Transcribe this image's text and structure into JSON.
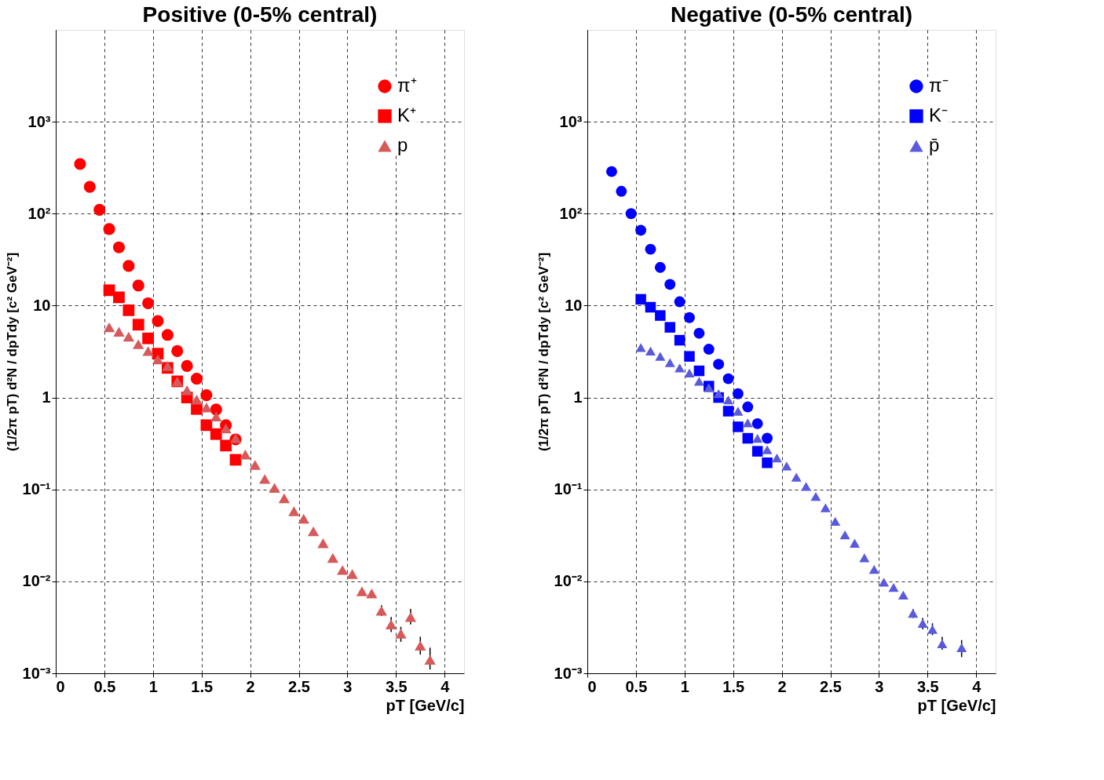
{
  "chart_data": [
    {
      "type": "scatter",
      "title": "Positive (0-5% central)",
      "xlabel": "pT [GeV/c]",
      "ylabel": "(1/2π pT) d²N / dpTdy [c² GeV⁻²]",
      "log": "y",
      "grid": true,
      "legend": "top right",
      "xlim": [
        0,
        4.2
      ],
      "xticks": [
        0,
        0.5,
        1,
        1.5,
        2,
        2.5,
        3,
        3.5,
        4
      ],
      "ylim": [
        0.001,
        10000
      ],
      "yticks": [
        {
          "value": 0.001,
          "label": "10⁻³"
        },
        {
          "value": 0.01,
          "label": "10⁻²"
        },
        {
          "value": 0.1,
          "label": "10⁻¹"
        },
        {
          "value": 1,
          "label": "1"
        },
        {
          "value": 10,
          "label": "10"
        },
        {
          "value": 100,
          "label": "10²"
        },
        {
          "value": 1000,
          "label": "10³"
        }
      ],
      "series": [
        {
          "name": "π⁺",
          "color": "#ff0000",
          "marker": "circle",
          "x": [
            0.25,
            0.35,
            0.45,
            0.55,
            0.65,
            0.75,
            0.85,
            0.95,
            1.05,
            1.15,
            1.25,
            1.35,
            1.45,
            1.55,
            1.65,
            1.75,
            1.85
          ],
          "values": [
            347,
            196,
            110,
            68,
            43,
            27,
            16.5,
            10.6,
            6.8,
            4.8,
            3.2,
            2.2,
            1.6,
            1.06,
            0.74,
            0.5,
            0.35
          ]
        },
        {
          "name": "K⁺",
          "color": "#ff0000",
          "marker": "square",
          "x": [
            0.55,
            0.65,
            0.75,
            0.85,
            0.95,
            1.05,
            1.15,
            1.25,
            1.35,
            1.45,
            1.55,
            1.65,
            1.75,
            1.85
          ],
          "values": [
            14.7,
            12.3,
            8.9,
            6.2,
            4.4,
            3.0,
            2.1,
            1.5,
            1.0,
            0.75,
            0.5,
            0.4,
            0.3,
            0.21
          ]
        },
        {
          "name": "p",
          "color": "#d65a5a",
          "marker": "triangle",
          "x": [
            0.55,
            0.65,
            0.75,
            0.85,
            0.95,
            1.05,
            1.15,
            1.25,
            1.35,
            1.45,
            1.55,
            1.65,
            1.75,
            1.85,
            1.95,
            2.05,
            2.15,
            2.25,
            2.35,
            2.45,
            2.55,
            2.65,
            2.75,
            2.85,
            2.95,
            3.05,
            3.15,
            3.25,
            3.35,
            3.45,
            3.55,
            3.65,
            3.75,
            3.85
          ],
          "values": [
            5.8,
            5.2,
            4.6,
            3.8,
            3.2,
            2.6,
            2.2,
            1.5,
            1.2,
            0.95,
            0.78,
            0.62,
            0.46,
            0.36,
            0.24,
            0.185,
            0.13,
            0.104,
            0.08,
            0.058,
            0.048,
            0.035,
            0.026,
            0.018,
            0.0133,
            0.012,
            0.0078,
            0.0074,
            0.0048,
            0.0034,
            0.0027,
            0.0041,
            0.002,
            0.0014
          ],
          "errors": [
            null,
            null,
            null,
            null,
            null,
            null,
            null,
            null,
            null,
            null,
            null,
            null,
            null,
            null,
            null,
            null,
            null,
            null,
            null,
            null,
            null,
            null,
            null,
            null,
            null,
            null,
            null,
            null,
            [
              0.0042,
              0.0055
            ],
            [
              0.0028,
              0.0041
            ],
            [
              0.0022,
              0.0032
            ],
            [
              0.0034,
              0.005
            ],
            [
              0.0016,
              0.0025
            ],
            [
              0.0011,
              0.0019
            ]
          ]
        }
      ]
    },
    {
      "type": "scatter",
      "title": "Negative (0-5% central)",
      "xlabel": "pT [GeV/c]",
      "ylabel": "(1/2π pT) d²N / dpTdy [c² GeV⁻²]",
      "log": "y",
      "grid": true,
      "legend": "top right",
      "xlim": [
        0,
        4.2
      ],
      "xticks": [
        0,
        0.5,
        1,
        1.5,
        2,
        2.5,
        3,
        3.5,
        4
      ],
      "ylim": [
        0.001,
        10000
      ],
      "yticks": [
        {
          "value": 0.001,
          "label": "10⁻³"
        },
        {
          "value": 0.01,
          "label": "10⁻²"
        },
        {
          "value": 0.1,
          "label": "10⁻¹"
        },
        {
          "value": 1,
          "label": "1"
        },
        {
          "value": 10,
          "label": "10"
        },
        {
          "value": 100,
          "label": "10²"
        },
        {
          "value": 1000,
          "label": "10³"
        }
      ],
      "series": [
        {
          "name": "π⁻",
          "color": "#0000ff",
          "marker": "circle",
          "x": [
            0.25,
            0.35,
            0.45,
            0.55,
            0.65,
            0.75,
            0.85,
            0.95,
            1.05,
            1.15,
            1.25,
            1.35,
            1.45,
            1.55,
            1.65,
            1.75,
            1.85
          ],
          "values": [
            287,
            175,
            100,
            66,
            41,
            26,
            17,
            11,
            7.4,
            5.0,
            3.35,
            2.3,
            1.6,
            1.1,
            0.79,
            0.52,
            0.36
          ]
        },
        {
          "name": "K⁻",
          "color": "#0000ff",
          "marker": "square",
          "x": [
            0.55,
            0.65,
            0.75,
            0.85,
            0.95,
            1.05,
            1.15,
            1.25,
            1.35,
            1.45,
            1.55,
            1.65,
            1.75,
            1.85
          ],
          "values": [
            11.7,
            9.6,
            7.8,
            5.8,
            4.2,
            2.8,
            1.95,
            1.33,
            1.0,
            0.71,
            0.48,
            0.36,
            0.26,
            0.195
          ]
        },
        {
          "name": "p̄",
          "color": "#5a5adc",
          "marker": "triangle",
          "x": [
            0.55,
            0.65,
            0.75,
            0.85,
            0.95,
            1.05,
            1.15,
            1.25,
            1.35,
            1.45,
            1.55,
            1.65,
            1.75,
            1.85,
            1.95,
            2.05,
            2.15,
            2.25,
            2.35,
            2.45,
            2.55,
            2.65,
            2.75,
            2.85,
            2.95,
            3.05,
            3.15,
            3.25,
            3.35,
            3.45,
            3.55,
            3.65,
            3.75,
            3.85
          ],
          "values": [
            3.5,
            3.2,
            2.8,
            2.4,
            2.1,
            1.85,
            1.5,
            1.28,
            1.1,
            0.94,
            0.71,
            0.53,
            0.36,
            0.27,
            0.22,
            0.18,
            0.136,
            0.108,
            0.084,
            0.063,
            0.045,
            0.032,
            0.026,
            0.018,
            0.0135,
            0.0098,
            0.0086,
            0.0071,
            0.0045,
            0.0035,
            0.003,
            0.0021,
            null,
            0.0019
          ],
          "errors": [
            null,
            null,
            null,
            null,
            null,
            null,
            null,
            null,
            null,
            null,
            null,
            null,
            null,
            null,
            null,
            null,
            null,
            null,
            null,
            null,
            null,
            null,
            null,
            null,
            null,
            null,
            null,
            null,
            [
              0.004,
              0.005
            ],
            [
              0.003,
              0.004
            ],
            [
              0.0026,
              0.0035
            ],
            [
              0.0018,
              0.0025
            ],
            null,
            [
              0.0015,
              0.0023
            ]
          ]
        }
      ]
    }
  ]
}
